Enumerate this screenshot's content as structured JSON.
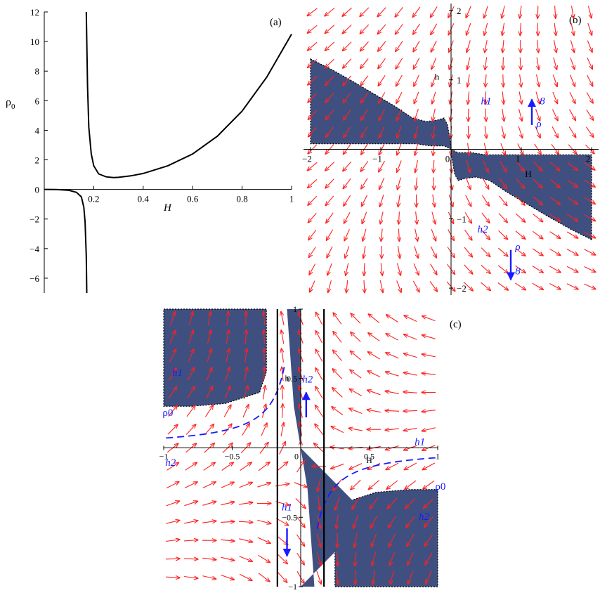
{
  "colors": {
    "region": "#3f5080",
    "field": "#ff2020",
    "curve": "#000000",
    "annot": "#1a1aff",
    "axis": "#000000"
  },
  "chart_data": [
    {
      "panel": "(a)",
      "type": "line",
      "xlabel": "H",
      "ylabel": "ρ",
      "ylabel_sub": "0",
      "xlim": [
        0,
        1
      ],
      "ylim": [
        -7,
        12
      ],
      "xticks": [
        "0.2",
        "0.4",
        "0.6",
        "0.8",
        "1"
      ],
      "xtick_vals": [
        0.2,
        0.4,
        0.6,
        0.8,
        1
      ],
      "yticks": [
        "−6",
        "−4",
        "−2",
        "0",
        "2",
        "4",
        "6",
        "8",
        "10",
        "12"
      ],
      "ytick_vals": [
        -6,
        -4,
        -2,
        0,
        2,
        4,
        6,
        8,
        10,
        12
      ],
      "series": [
        {
          "x": [
            0.17,
            0.175,
            0.18,
            0.19,
            0.2,
            0.22,
            0.25,
            0.28,
            0.3,
            0.35,
            0.4,
            0.5,
            0.6,
            0.7,
            0.8,
            0.9,
            1.0
          ],
          "y": [
            12,
            7,
            4.2,
            2.4,
            1.6,
            1.05,
            0.85,
            0.8,
            0.82,
            0.92,
            1.08,
            1.6,
            2.4,
            3.6,
            5.3,
            7.6,
            10.5
          ]
        },
        {
          "x": [
            0,
            0.05,
            0.1,
            0.13,
            0.15,
            0.16,
            0.165,
            0.17,
            0.172
          ],
          "y": [
            0,
            -0.01,
            -0.06,
            -0.2,
            -0.5,
            -1.2,
            -2.2,
            -4.5,
            -7
          ]
        }
      ]
    },
    {
      "panel": "(b)",
      "type": "vector-field",
      "xlabel": "H",
      "ylabel": "h",
      "xlim": [
        -2.1,
        2.1
      ],
      "ylim": [
        -2.1,
        2.1
      ],
      "xticks": [
        "−2",
        "−1",
        "0",
        "1",
        "2"
      ],
      "xtick_vals": [
        -2,
        -1,
        0,
        1,
        2
      ],
      "yticks": [
        "2",
        "1",
        "−1",
        "−2"
      ],
      "ytick_vals": [
        2,
        1,
        -1,
        -2
      ],
      "regions": [
        {
          "x": [
            -2,
            -1.7,
            -1.4,
            -1.1,
            -0.8,
            -0.55,
            -0.35,
            -0.2,
            -0.1,
            -0.05,
            0,
            0,
            -0.1,
            -0.3,
            -0.5,
            -0.8,
            -1.1,
            -1.4,
            -1.7,
            -2
          ],
          "y": [
            1.3,
            1.15,
            0.98,
            0.8,
            0.62,
            0.45,
            0.4,
            0.42,
            0.45,
            0.35,
            0.05,
            0,
            0.05,
            0.05,
            0.08,
            0.08,
            0.08,
            0.08,
            0.08,
            0.08
          ]
        },
        {
          "x": [
            2,
            1.7,
            1.4,
            1.1,
            0.8,
            0.55,
            0.35,
            0.2,
            0.1,
            0.05,
            0,
            0,
            0.1,
            0.3,
            0.5,
            0.8,
            1.1,
            1.4,
            1.7,
            2
          ],
          "y": [
            -1.3,
            -1.15,
            -0.98,
            -0.8,
            -0.62,
            -0.45,
            -0.4,
            -0.42,
            -0.45,
            -0.35,
            -0.05,
            0,
            -0.05,
            -0.05,
            -0.08,
            -0.08,
            -0.08,
            -0.08,
            -0.08,
            -0.08
          ]
        }
      ],
      "annotations": [
        {
          "text": "h1",
          "x": 0.5,
          "y": 0.65
        },
        {
          "text": "h2",
          "x": 0.45,
          "y": -1.2
        },
        {
          "text": "8",
          "x": 1.3,
          "y": 0.65
        },
        {
          "text": "ρ",
          "x": 1.25,
          "y": 0.32
        },
        {
          "text": "ρ",
          "x": 0.95,
          "y": -1.45
        },
        {
          "text": "8",
          "x": 0.95,
          "y": -1.8
        }
      ]
    },
    {
      "panel": "(c)",
      "type": "vector-field",
      "xlabel": "H",
      "ylabel": "h",
      "xlim": [
        -1,
        1
      ],
      "ylim": [
        -1,
        1
      ],
      "xticks": [
        "−1",
        "−0.5",
        "0",
        "0.5",
        "1"
      ],
      "xtick_vals": [
        -1,
        -0.5,
        0,
        0.5,
        1
      ],
      "yticks": [
        "1",
        "0.5",
        "−0.5",
        "−1"
      ],
      "ytick_vals": [
        1,
        0.5,
        -0.5,
        -1
      ],
      "vertical_lines": [
        -0.17,
        0.17
      ],
      "rho0_curve_k": 0.07,
      "annotations": [
        {
          "text": "h1",
          "x": -0.9,
          "y": 0.52
        },
        {
          "text": "h2",
          "x": -0.95,
          "y": -0.13
        },
        {
          "text": "h2",
          "x": 0.05,
          "y": 0.47
        },
        {
          "text": "h1",
          "x": 0.87,
          "y": 0.02
        },
        {
          "text": "h1",
          "x": -0.1,
          "y": -0.45
        },
        {
          "text": "h2",
          "x": 0.9,
          "y": -0.52
        },
        {
          "text": "ρ0",
          "x": -0.97,
          "y": 0.23
        },
        {
          "text": "ρ0",
          "x": 1.02,
          "y": -0.3
        }
      ]
    }
  ],
  "labels": {
    "panel_a": "(a)",
    "panel_b": "(b)",
    "panel_c": "(c)",
    "axis_h": "h",
    "axis_H": "H",
    "rho": "ρ",
    "rho_sub": "0"
  }
}
